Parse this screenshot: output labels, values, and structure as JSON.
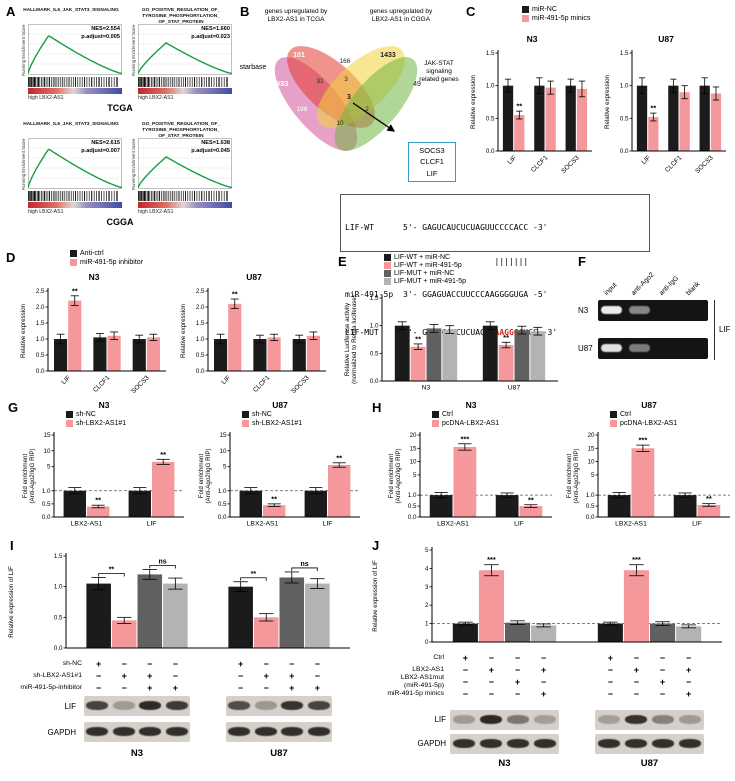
{
  "panelA": {
    "label": "A",
    "ylabel": "Running Enrichment Score",
    "row_labels": [
      "TCGA",
      "CGGA"
    ],
    "plots": [
      {
        "title": "HALLMARK_IL6_JAK_STAT3_SIGNALING",
        "nes": "NES=2.554",
        "padj": "p.adjust=0.005",
        "xlabel": "high LBX2-AS1",
        "peak": 0.62,
        "peakpos": 0.22
      },
      {
        "title": "GO_POSITIVE_REGULATION_OF_\nTYROSINE_PHOSPHORYLATION_\nOF_STAT_PROTEIN",
        "nes": "NES=1.660",
        "padj": "p.adjust=0.023",
        "xlabel": "high LBX2-AS1",
        "peak": 0.5,
        "peakpos": 0.3
      },
      {
        "title": "HALLMARK_IL6_JAK_STAT3_SIGNALING",
        "nes": "NES=2.615",
        "padj": "p.adjust=0.007",
        "xlabel": "high LBX2-AS1",
        "peak": 0.63,
        "peakpos": 0.22
      },
      {
        "title": "GO_POSITIVE_REGULATION_OF_\nTYROSINE_PHOSPHORYLATION_\nOF_STAT_PROTEIN",
        "nes": "NES=1.638",
        "padj": "p.adjust=0.045",
        "xlabel": "high LBX2-AS1",
        "peak": 0.5,
        "peakpos": 0.3
      }
    ]
  },
  "panelB": {
    "label": "B",
    "set_labels": {
      "tcga": "genes upregulated by\nLBX2-AS1 in TCGA",
      "cgga": "genes upregulated by\nLBX2-AS1 in CGGA",
      "starbase": "starbase",
      "jak": "JAK-STAT\nsignaling\nrelated genes"
    },
    "counts": [
      "101",
      "166",
      "1433",
      "2933",
      "31",
      "3",
      "49",
      "198",
      "3",
      "2",
      "10"
    ],
    "genes_box": [
      "SOCS3",
      "CLCF1",
      "LIF"
    ]
  },
  "panelC": {
    "label": "C",
    "titles": [
      "N3",
      "U87"
    ],
    "legend": [
      {
        "label": "miR-NC",
        "color": "#1b1b1b"
      },
      {
        "label": "miR-491-5p minics",
        "color": "#f4989c"
      }
    ]
  },
  "panelD": {
    "label": "D",
    "titles": [
      "N3",
      "U87"
    ],
    "legend": [
      {
        "label": "Anti-ctrl",
        "color": "#1b1b1b"
      },
      {
        "label": "miR-491-5p inhibitor",
        "color": "#f4989c"
      }
    ]
  },
  "panelSeq": {
    "wt_label": "LIF-WT",
    "wt_text": "5'- GAGUCAUCUCUAGUUCCCCACC -3'",
    "pairs": "                   |||||||",
    "mir_label": "miR-491-5p",
    "mir_text": "3'- GGAGUACCUUCCCAAGGGGUGA -5'",
    "mut_label": "LIF-MUT",
    "mut_pre": "5'- GAGUCAUCUCUAGUU",
    "mut_red": "AAGGGGU",
    "mut_post": "CC -3'"
  },
  "panelE": {
    "label": "E",
    "legend": [
      {
        "label": "LIF-WT + miR-NC",
        "color": "#1b1b1b"
      },
      {
        "label": "LIF-WT + miR-491-5p",
        "color": "#f4989c"
      },
      {
        "label": "LIF-MUT + miR-NC",
        "color": "#606060"
      },
      {
        "label": "LIF-MUT + miR-491-5p",
        "color": "#b3b3b3"
      }
    ]
  },
  "panelF": {
    "label": "F",
    "lanes": [
      "input",
      "anti-Ago2",
      "anti-IgG",
      "blank"
    ],
    "rows": [
      "N3",
      "U87"
    ],
    "target": "LIF",
    "bands": [
      [
        0.95,
        0.5,
        0,
        0
      ],
      [
        0.9,
        0.45,
        0,
        0
      ]
    ]
  },
  "panelG": {
    "label": "G",
    "titles": [
      "N3",
      "U87"
    ],
    "legend": [
      {
        "label": "sh-NC",
        "color": "#1b1b1b"
      },
      {
        "label": "sh-LBX2-AS1#1",
        "color": "#f4989c"
      }
    ]
  },
  "panelH": {
    "label": "H",
    "titles": [
      "N3",
      "U87"
    ],
    "legend": [
      {
        "label": "Ctrl",
        "color": "#1b1b1b"
      },
      {
        "label": "pcDNA-LBX2-AS1",
        "color": "#f4989c"
      }
    ]
  },
  "panelI": {
    "label": "I",
    "rows": [
      {
        "label": "sh-NC",
        "values": [
          "+",
          "−",
          "−",
          "−",
          "+",
          "−",
          "−",
          "−"
        ]
      },
      {
        "label": "sh-LBX2-AS1#1",
        "values": [
          "−",
          "+",
          "+",
          "−",
          "−",
          "+",
          "+",
          "−"
        ]
      },
      {
        "label": "miR-491-5p-inhibitor",
        "values": [
          "−",
          "−",
          "+",
          "+",
          "−",
          "−",
          "+",
          "+"
        ]
      }
    ],
    "blot_labels": [
      "LIF",
      "GAPDH"
    ],
    "cell_labels": [
      "N3",
      "U87"
    ],
    "lif_bands": [
      [
        0.8,
        0.3,
        0.95,
        0.85
      ],
      [
        0.75,
        0.32,
        0.9,
        0.8
      ]
    ],
    "gapdh_bands": [
      [
        0.92,
        0.92,
        0.92,
        0.92
      ],
      [
        0.92,
        0.92,
        0.92,
        0.92
      ]
    ]
  },
  "panelJ": {
    "label": "J",
    "rows": [
      {
        "label": "Ctrl",
        "values": [
          "+",
          "−",
          "−",
          "−",
          "+",
          "−",
          "−",
          "−"
        ]
      },
      {
        "label": "LBX2-AS1",
        "values": [
          "−",
          "+",
          "−",
          "+",
          "−",
          "+",
          "−",
          "+"
        ]
      },
      {
        "label": "LBX2-AS1mut\n(miR-491-5p)",
        "values": [
          "−",
          "−",
          "+",
          "−",
          "−",
          "−",
          "+",
          "−"
        ]
      },
      {
        "label": "miR-491-5p minics",
        "values": [
          "−",
          "−",
          "−",
          "+",
          "−",
          "−",
          "−",
          "+"
        ]
      }
    ],
    "blot_labels": [
      "LIF",
      "GAPDH"
    ],
    "cell_labels": [
      "N3",
      "U87"
    ],
    "lif_bands": [
      [
        0.3,
        0.95,
        0.5,
        0.28
      ],
      [
        0.28,
        0.9,
        0.45,
        0.3
      ]
    ],
    "gapdh_bands": [
      [
        0.92,
        0.92,
        0.92,
        0.92
      ],
      [
        0.92,
        0.92,
        0.92,
        0.92
      ]
    ]
  },
  "chart_data": [
    {
      "id": "c_n3",
      "type": "bar",
      "title": "N3",
      "ylabel": "Relative expression",
      "ylim": [
        0,
        1.5
      ],
      "yticks": [
        0,
        0.5,
        1.0,
        1.5
      ],
      "categories": [
        "LIF",
        "CLCF1",
        "SOCS3"
      ],
      "cat_rotate": 45,
      "series": [
        {
          "name": "miR-NC",
          "color": "#1b1b1b",
          "values": [
            1.0,
            1.0,
            1.0
          ],
          "errors": [
            0.1,
            0.12,
            0.1
          ]
        },
        {
          "name": "miR-491-5p minics",
          "color": "#f4989c",
          "values": [
            0.55,
            0.97,
            0.95
          ],
          "errors": [
            0.06,
            0.1,
            0.12
          ]
        }
      ],
      "sigs": [
        {
          "cat": 0,
          "series": 1,
          "text": "**"
        }
      ]
    },
    {
      "id": "c_u87",
      "type": "bar",
      "title": "U87",
      "ylabel": "Relative expression",
      "ylim": [
        0,
        1.5
      ],
      "yticks": [
        0,
        0.5,
        1.0,
        1.5
      ],
      "categories": [
        "LIF",
        "CLCF1",
        "SOCS3"
      ],
      "cat_rotate": 45,
      "series": [
        {
          "name": "miR-NC",
          "color": "#1b1b1b",
          "values": [
            1.0,
            1.0,
            1.0
          ],
          "errors": [
            0.12,
            0.1,
            0.12
          ]
        },
        {
          "name": "miR-491-5p minics",
          "color": "#f4989c",
          "values": [
            0.52,
            0.9,
            0.88
          ],
          "errors": [
            0.06,
            0.1,
            0.1
          ]
        }
      ],
      "sigs": [
        {
          "cat": 0,
          "series": 1,
          "text": "**"
        }
      ]
    },
    {
      "id": "d_n3",
      "type": "bar",
      "title": "N3",
      "ylabel": "Relative expression",
      "ylim": [
        0,
        2.5
      ],
      "yticks": [
        0,
        0.5,
        1.0,
        1.5,
        2.0,
        2.5
      ],
      "categories": [
        "LIF",
        "CLCF1",
        "SOCS3"
      ],
      "cat_rotate": 45,
      "series": [
        {
          "name": "Anti-ctrl",
          "color": "#1b1b1b",
          "values": [
            1.0,
            1.05,
            1.0
          ],
          "errors": [
            0.15,
            0.12,
            0.12
          ]
        },
        {
          "name": "miR-491-5p inhibitor",
          "color": "#f4989c",
          "values": [
            2.2,
            1.1,
            1.05
          ],
          "errors": [
            0.15,
            0.12,
            0.1
          ]
        }
      ],
      "sigs": [
        {
          "cat": 0,
          "series": 1,
          "text": "**"
        }
      ]
    },
    {
      "id": "d_u87",
      "type": "bar",
      "title": "U87",
      "ylabel": "Relative expression",
      "ylim": [
        0,
        2.5
      ],
      "yticks": [
        0,
        0.5,
        1.0,
        1.5,
        2.0,
        2.5
      ],
      "categories": [
        "LIF",
        "CLCF1",
        "SOCS3"
      ],
      "cat_rotate": 45,
      "series": [
        {
          "name": "Anti-ctrl",
          "color": "#1b1b1b",
          "values": [
            1.0,
            1.0,
            1.0
          ],
          "errors": [
            0.15,
            0.12,
            0.12
          ]
        },
        {
          "name": "miR-491-5p inhibitor",
          "color": "#f4989c",
          "values": [
            2.1,
            1.05,
            1.1
          ],
          "errors": [
            0.15,
            0.1,
            0.12
          ]
        }
      ],
      "sigs": [
        {
          "cat": 0,
          "series": 1,
          "text": "**"
        }
      ]
    },
    {
      "id": "e",
      "type": "bar",
      "ylabel": "Relative Luciferase activity\n(normalized to Renila luciferase)",
      "ylim": [
        0,
        1.5
      ],
      "yticks": [
        0,
        0.5,
        1.0,
        1.5
      ],
      "categories": [
        "N3",
        "U87"
      ],
      "series": [
        {
          "name": "LIF-WT + miR-NC",
          "color": "#1b1b1b",
          "values": [
            1.0,
            1.0
          ],
          "errors": [
            0.07,
            0.07
          ]
        },
        {
          "name": "LIF-WT + miR-491-5p",
          "color": "#f4989c",
          "values": [
            0.62,
            0.65
          ],
          "errors": [
            0.05,
            0.05
          ]
        },
        {
          "name": "LIF-MUT + miR-NC",
          "color": "#606060",
          "values": [
            0.95,
            0.92
          ],
          "errors": [
            0.07,
            0.07
          ]
        },
        {
          "name": "LIF-MUT + miR-491-5p",
          "color": "#b3b3b3",
          "values": [
            0.93,
            0.9
          ],
          "errors": [
            0.07,
            0.07
          ]
        }
      ],
      "sigs": [
        {
          "cat": 0,
          "series": 1,
          "text": "**"
        },
        {
          "cat": 1,
          "series": 1,
          "text": "**"
        }
      ]
    },
    {
      "id": "g_n3",
      "type": "bar",
      "title": "N3",
      "ylabel": "Fold enrichment\n(Anti-Ago2/IgG RIP)",
      "ylim": [
        0,
        15
      ],
      "yticks": [
        0,
        0.5,
        1.0,
        5,
        10,
        15
      ],
      "split": {
        "low": 1.5,
        "fr": 0.48
      },
      "dash": 1.0,
      "categories": [
        "LBX2-AS1",
        "LIF"
      ],
      "series": [
        {
          "name": "sh-NC",
          "color": "#1b1b1b",
          "values": [
            1.0,
            1.0
          ],
          "errors": [
            0.12,
            0.12
          ]
        },
        {
          "name": "sh-LBX2-AS1#1",
          "color": "#f4989c",
          "values": [
            0.4,
            6.5
          ],
          "errors": [
            0.05,
            0.8
          ]
        }
      ],
      "sigs": [
        {
          "cat": 0,
          "series": 1,
          "text": "**"
        },
        {
          "cat": 1,
          "series": 1,
          "text": "**"
        }
      ]
    },
    {
      "id": "g_u87",
      "type": "bar",
      "title": "U87",
      "ylabel": "Fold enrichment\n(Anti-Ago2/IgG RIP)",
      "ylim": [
        0,
        15
      ],
      "yticks": [
        0,
        0.5,
        1.0,
        5,
        10,
        15
      ],
      "split": {
        "low": 1.5,
        "fr": 0.48
      },
      "dash": 1.0,
      "categories": [
        "LBX2-AS1",
        "LIF"
      ],
      "series": [
        {
          "name": "sh-NC",
          "color": "#1b1b1b",
          "values": [
            1.0,
            1.0
          ],
          "errors": [
            0.12,
            0.12
          ]
        },
        {
          "name": "sh-LBX2-AS1#1",
          "color": "#f4989c",
          "values": [
            0.45,
            5.5
          ],
          "errors": [
            0.05,
            0.7
          ]
        }
      ],
      "sigs": [
        {
          "cat": 0,
          "series": 1,
          "text": "**"
        },
        {
          "cat": 1,
          "series": 1,
          "text": "**"
        }
      ]
    },
    {
      "id": "h_n3",
      "type": "bar",
      "title": "N3",
      "ylabel": "Fold enrichment\n(Anti-Ago2/IgG RIP)",
      "ylim": [
        0,
        20
      ],
      "yticks": [
        0,
        0.5,
        1.0,
        5,
        10,
        15,
        20
      ],
      "split": {
        "low": 1.5,
        "fr": 0.4
      },
      "dash": 1.0,
      "categories": [
        "LBX2-AS1",
        "LIF"
      ],
      "series": [
        {
          "name": "Ctrl",
          "color": "#1b1b1b",
          "values": [
            1.0,
            1.0
          ],
          "errors": [
            0.12,
            0.1
          ]
        },
        {
          "name": "pcDNA-LBX2-AS1",
          "color": "#f4989c",
          "values": [
            15.5,
            0.5
          ],
          "errors": [
            1.2,
            0.06
          ]
        }
      ],
      "sigs": [
        {
          "cat": 0,
          "series": 1,
          "text": "***"
        },
        {
          "cat": 1,
          "series": 1,
          "text": "**"
        }
      ]
    },
    {
      "id": "h_u87",
      "type": "bar",
      "title": "U87",
      "ylabel": "Fold enrichment\n(Anti-Ago2/IgG RIP)",
      "ylim": [
        0,
        20
      ],
      "yticks": [
        0,
        0.5,
        1.0,
        5,
        10,
        15,
        20
      ],
      "split": {
        "low": 1.5,
        "fr": 0.4
      },
      "dash": 1.0,
      "categories": [
        "LBX2-AS1",
        "LIF"
      ],
      "series": [
        {
          "name": "Ctrl",
          "color": "#1b1b1b",
          "values": [
            1.0,
            1.0
          ],
          "errors": [
            0.12,
            0.1
          ]
        },
        {
          "name": "pcDNA-LBX2-AS1",
          "color": "#f4989c",
          "values": [
            15.0,
            0.55
          ],
          "errors": [
            1.2,
            0.06
          ]
        }
      ],
      "sigs": [
        {
          "cat": 0,
          "series": 1,
          "text": "***"
        },
        {
          "cat": 1,
          "series": 1,
          "text": "**"
        }
      ]
    },
    {
      "id": "i",
      "type": "bar",
      "ylabel": "Relative expression of LIF",
      "ylim": [
        0,
        1.5
      ],
      "yticks": [
        0,
        0.5,
        1.0,
        1.5
      ],
      "categories": [
        "N3",
        "U87"
      ],
      "cats_show": false,
      "series": [
        {
          "name": "sh-NC",
          "color": "#1b1b1b",
          "values": [
            1.05,
            1.0
          ],
          "errors": [
            0.1,
            0.08
          ]
        },
        {
          "name": "sh-LBX2-AS1#1",
          "color": "#f4989c",
          "values": [
            0.45,
            0.5
          ],
          "errors": [
            0.05,
            0.06
          ]
        },
        {
          "name": "sh-LBX2-AS1#1 + miR-491-5p-inhibitor",
          "color": "#606060",
          "values": [
            1.2,
            1.15
          ],
          "errors": [
            0.08,
            0.09
          ]
        },
        {
          "name": "miR-491-5p-inhibitor",
          "color": "#b3b3b3",
          "values": [
            1.05,
            1.05
          ],
          "errors": [
            0.09,
            0.08
          ]
        }
      ],
      "brackets": [
        {
          "cat": 0,
          "s1": 0,
          "s2": 1,
          "text": "**"
        },
        {
          "cat": 0,
          "s1": 2,
          "s2": 3,
          "text": "ns"
        },
        {
          "cat": 1,
          "s1": 0,
          "s2": 1,
          "text": "**"
        },
        {
          "cat": 1,
          "s1": 2,
          "s2": 3,
          "text": "ns"
        }
      ]
    },
    {
      "id": "j",
      "type": "bar",
      "ylabel": "Relative expression of LIF",
      "ylim": [
        0,
        5
      ],
      "yticks": [
        0,
        1,
        2,
        3,
        4,
        5
      ],
      "dash": 1.0,
      "categories": [
        "N3",
        "U87"
      ],
      "cats_show": false,
      "series": [
        {
          "name": "Ctrl",
          "color": "#1b1b1b",
          "values": [
            1.0,
            1.0
          ],
          "errors": [
            0.08,
            0.08
          ]
        },
        {
          "name": "LBX2-AS1",
          "color": "#f4989c",
          "values": [
            3.9,
            3.9
          ],
          "errors": [
            0.3,
            0.3
          ]
        },
        {
          "name": "LBX2-AS1mut (miR-491-5p)",
          "color": "#606060",
          "values": [
            1.05,
            1.0
          ],
          "errors": [
            0.1,
            0.1
          ]
        },
        {
          "name": "miR-491-5p minics",
          "color": "#b3b3b3",
          "values": [
            0.9,
            0.85
          ],
          "errors": [
            0.08,
            0.08
          ]
        }
      ],
      "sigs": [
        {
          "cat": 0,
          "series": 1,
          "text": "***"
        },
        {
          "cat": 1,
          "series": 1,
          "text": "***"
        }
      ]
    }
  ]
}
